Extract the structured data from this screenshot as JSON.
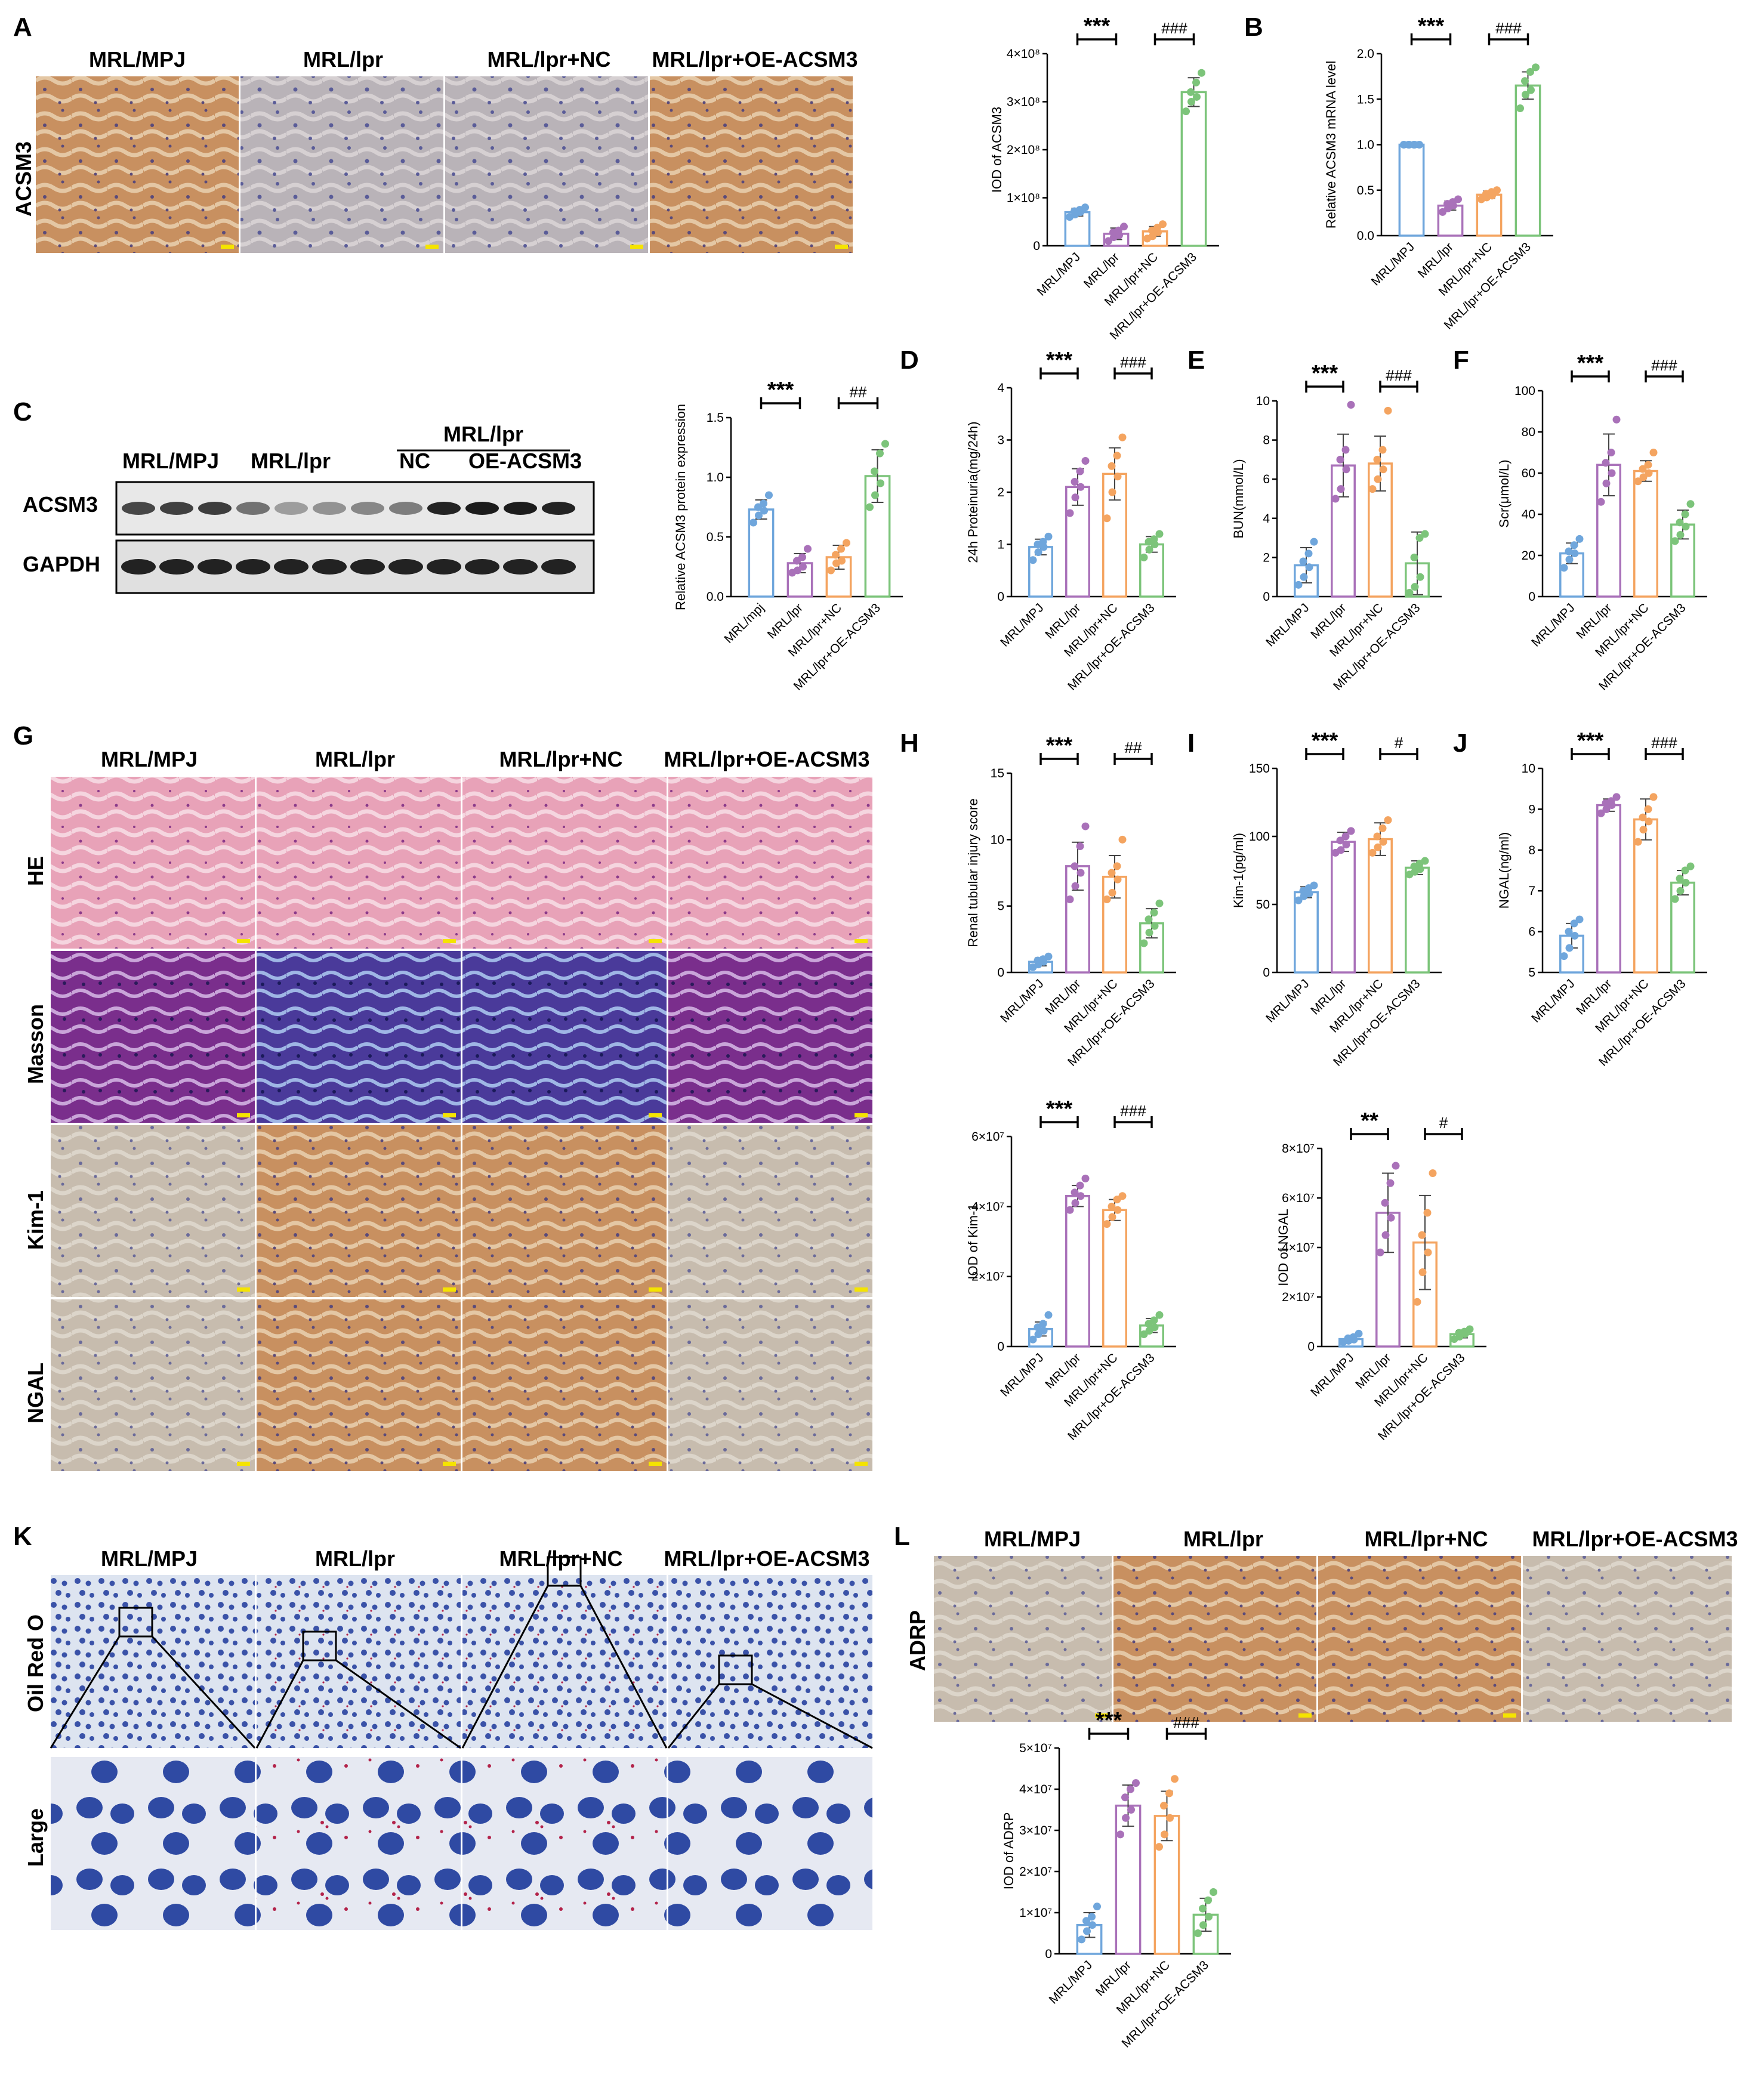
{
  "groups": [
    "MRL/MPJ",
    "MRL/lpr",
    "MRL/lpr+NC",
    "MRL/lpr+OE-ACSM3"
  ],
  "colors": [
    "#6fa6dc",
    "#a971b9",
    "#f4a460",
    "#7cc47a"
  ],
  "panel_letters": [
    "A",
    "B",
    "C",
    "D",
    "E",
    "F",
    "G",
    "H",
    "I",
    "J",
    "K",
    "L"
  ],
  "panel_a": {
    "stain_label": "ACSM3",
    "headers": [
      "MRL/MPJ",
      "MRL/lpr",
      "MRL/lpr+NC",
      "MRL/lpr+OE-ACSM3"
    ]
  },
  "panel_c": {
    "headers": [
      "MRL/MPJ",
      "MRL/lpr"
    ],
    "group_bracket_label": "MRL/lpr",
    "sub_headers": [
      "NC",
      "OE-ACSM3"
    ],
    "bands": [
      "ACSM3",
      "GAPDH"
    ]
  },
  "panel_g": {
    "headers": [
      "MRL/MPJ",
      "MRL/lpr",
      "MRL/lpr+NC",
      "MRL/lpr+OE-ACSM3"
    ],
    "rows": [
      "HE",
      "Masson",
      "Kim-1",
      "NGAL"
    ]
  },
  "panel_k": {
    "headers": [
      "MRL/MPJ",
      "MRL/lpr",
      "MRL/lpr+NC",
      "MRL/lpr+OE-ACSM3"
    ],
    "rows": [
      "Oil Red O",
      "Large"
    ]
  },
  "panel_l": {
    "stain_label": "ADRP",
    "headers": [
      "MRL/MPJ",
      "MRL/lpr",
      "MRL/lpr+NC",
      "MRL/lpr+OE-ACSM3"
    ]
  },
  "chart_data": [
    {
      "id": "A-iod",
      "type": "bar",
      "categories": [
        "MRL/MPJ",
        "MRL/lpr",
        "MRL/lpr+NC",
        "MRL/lpr+OE-ACSM3"
      ],
      "values": [
        70000000,
        25000000,
        30000000,
        320000000
      ],
      "errors": [
        8000000,
        12000000,
        10000000,
        30000000
      ],
      "points": [
        [
          60000000,
          65000000,
          70000000,
          72000000,
          75000000,
          80000000
        ],
        [
          10000000,
          18000000,
          22000000,
          28000000,
          32000000,
          40000000
        ],
        [
          15000000,
          20000000,
          28000000,
          32000000,
          38000000,
          45000000
        ],
        [
          280000000,
          300000000,
          310000000,
          320000000,
          340000000,
          360000000
        ]
      ],
      "ylabel": "IOD of ACSM3",
      "ylim": [
        0,
        400000000
      ],
      "ticks": [
        "0",
        "1×10⁸",
        "2×10⁸",
        "3×10⁸",
        "4×10⁸"
      ],
      "sig": [
        {
          "from": 0,
          "to": 1,
          "label": "***"
        },
        {
          "from": 2,
          "to": 3,
          "label": "###"
        }
      ]
    },
    {
      "id": "B",
      "type": "bar",
      "categories": [
        "MRL/MPJ",
        "MRL/lpr",
        "MRL/lpr+NC",
        "MRL/lpr+OE-ACSM3"
      ],
      "values": [
        1.0,
        0.33,
        0.45,
        1.65
      ],
      "errors": [
        0.01,
        0.05,
        0.04,
        0.15
      ],
      "points": [
        [
          1.0,
          1.0,
          1.0,
          1.0,
          1.0,
          1.0
        ],
        [
          0.26,
          0.3,
          0.33,
          0.35,
          0.37,
          0.4
        ],
        [
          0.4,
          0.42,
          0.44,
          0.46,
          0.48,
          0.5
        ],
        [
          1.4,
          1.55,
          1.6,
          1.7,
          1.8,
          1.85
        ]
      ],
      "ylabel": "Relative ACSM3 mRNA level",
      "ylim": [
        0,
        2.0
      ],
      "ticks": [
        "0.0",
        "0.5",
        "1.0",
        "1.5",
        "2.0"
      ],
      "sig": [
        {
          "from": 0,
          "to": 1,
          "label": "***"
        },
        {
          "from": 2,
          "to": 3,
          "label": "###"
        }
      ]
    },
    {
      "id": "C-wb",
      "type": "bar",
      "categories": [
        "MRL/mpj",
        "MRL/lpr",
        "MRL/lpr+NC",
        "MRL/lpr+OE-ACSM3"
      ],
      "values": [
        0.73,
        0.28,
        0.33,
        1.01
      ],
      "errors": [
        0.08,
        0.08,
        0.1,
        0.22
      ],
      "points": [
        [
          0.62,
          0.68,
          0.72,
          0.75,
          0.78,
          0.85
        ],
        [
          0.2,
          0.22,
          0.25,
          0.3,
          0.33,
          0.4
        ],
        [
          0.22,
          0.28,
          0.3,
          0.35,
          0.4,
          0.45
        ],
        [
          0.75,
          0.85,
          0.95,
          1.05,
          1.2,
          1.28
        ]
      ],
      "ylabel": "Relative ACSM3 protein expression",
      "ylim": [
        0,
        1.5
      ],
      "ticks": [
        "0.0",
        "0.5",
        "1.0",
        "1.5"
      ],
      "sig": [
        {
          "from": 0,
          "to": 1,
          "label": "***"
        },
        {
          "from": 2,
          "to": 3,
          "label": "##"
        }
      ]
    },
    {
      "id": "D",
      "type": "bar",
      "categories": [
        "MRL/MPJ",
        "MRL/lpr",
        "MRL/lpr+NC",
        "MRL/lpr+OE-ACSM3"
      ],
      "values": [
        0.95,
        2.1,
        2.35,
        1.0
      ],
      "errors": [
        0.15,
        0.35,
        0.5,
        0.15
      ],
      "points": [
        [
          0.7,
          0.85,
          0.95,
          1.0,
          1.05,
          1.15
        ],
        [
          1.6,
          1.9,
          2.1,
          2.2,
          2.4,
          2.6
        ],
        [
          1.5,
          2.0,
          2.3,
          2.5,
          2.7,
          3.05
        ],
        [
          0.75,
          0.9,
          1.0,
          1.05,
          1.1,
          1.2
        ]
      ],
      "ylabel": "24h Proteinuria(mg/24h)",
      "ylim": [
        0,
        4
      ],
      "ticks": [
        "0",
        "1",
        "2",
        "3",
        "4"
      ],
      "sig": [
        {
          "from": 0,
          "to": 1,
          "label": "***"
        },
        {
          "from": 2,
          "to": 3,
          "label": "###"
        }
      ]
    },
    {
      "id": "E",
      "type": "bar",
      "categories": [
        "MRL/MPJ",
        "MRL/lpr",
        "MRL/lpr+NC",
        "MRL/lpr+OE-ACSM3"
      ],
      "values": [
        1.6,
        6.7,
        6.8,
        1.7
      ],
      "errors": [
        0.9,
        1.6,
        1.4,
        1.6
      ],
      "points": [
        [
          0.6,
          1.0,
          1.5,
          1.8,
          2.2,
          2.8
        ],
        [
          5.0,
          5.5,
          6.5,
          7.0,
          7.5,
          9.8
        ],
        [
          5.5,
          6.0,
          6.5,
          7.0,
          7.5,
          9.5
        ],
        [
          0.2,
          0.5,
          1.0,
          2.0,
          3.0,
          3.2
        ]
      ],
      "ylabel": "BUN(mmol/L)",
      "ylim": [
        0,
        10
      ],
      "ticks": [
        "0",
        "2",
        "4",
        "6",
        "8",
        "10"
      ],
      "sig": [
        {
          "from": 0,
          "to": 1,
          "label": "***"
        },
        {
          "from": 2,
          "to": 3,
          "label": "###"
        }
      ]
    },
    {
      "id": "F",
      "type": "bar",
      "categories": [
        "MRL/MPJ",
        "MRL/lpr",
        "MRL/lpr+NC",
        "MRL/lpr+OE-ACSM3"
      ],
      "values": [
        21,
        64,
        61,
        35
      ],
      "errors": [
        5,
        15,
        5,
        7
      ],
      "points": [
        [
          14,
          18,
          21,
          22,
          25,
          28
        ],
        [
          46,
          55,
          60,
          65,
          70,
          86
        ],
        [
          56,
          58,
          60,
          62,
          64,
          70
        ],
        [
          27,
          30,
          34,
          36,
          40,
          45
        ]
      ],
      "ylabel": "Scr(μmol/L)",
      "ylim": [
        0,
        100
      ],
      "ticks": [
        "0",
        "20",
        "40",
        "60",
        "80",
        "100"
      ],
      "sig": [
        {
          "from": 0,
          "to": 1,
          "label": "***"
        },
        {
          "from": 2,
          "to": 3,
          "label": "###"
        }
      ]
    },
    {
      "id": "H",
      "type": "bar",
      "categories": [
        "MRL/MPJ",
        "MRL/lpr",
        "MRL/lpr+NC",
        "MRL/lpr+OE-ACSM3"
      ],
      "values": [
        0.8,
        8.0,
        7.2,
        3.7
      ],
      "errors": [
        0.3,
        1.8,
        1.6,
        1.1
      ],
      "points": [
        [
          0.4,
          0.6,
          0.8,
          0.9,
          1.0,
          1.2
        ],
        [
          5.5,
          6.5,
          7.5,
          8.0,
          9.5,
          11.0
        ],
        [
          5.5,
          6.0,
          7.0,
          7.5,
          8.0,
          10.0
        ],
        [
          2.2,
          3.0,
          3.5,
          4.0,
          4.5,
          5.2
        ]
      ],
      "ylabel": "Renal tubular injury score",
      "ylim": [
        0,
        15
      ],
      "ticks": [
        "0",
        "5",
        "10",
        "15"
      ],
      "sig": [
        {
          "from": 0,
          "to": 1,
          "label": "***"
        },
        {
          "from": 2,
          "to": 3,
          "label": "##"
        }
      ]
    },
    {
      "id": "I",
      "type": "bar",
      "categories": [
        "MRL/MPJ",
        "MRL/lpr",
        "MRL/lpr+NC",
        "MRL/lpr+OE-ACSM3"
      ],
      "values": [
        59,
        96,
        98,
        77
      ],
      "errors": [
        4,
        7,
        12,
        5
      ],
      "points": [
        [
          53,
          56,
          58,
          60,
          62,
          64
        ],
        [
          88,
          90,
          94,
          97,
          100,
          104
        ],
        [
          88,
          92,
          96,
          100,
          106,
          112
        ],
        [
          72,
          74,
          76,
          78,
          80,
          82
        ]
      ],
      "ylabel": "Kim-1(pg/ml)",
      "ylim": [
        0,
        150
      ],
      "ticks": [
        "0",
        "50",
        "100",
        "150"
      ],
      "sig": [
        {
          "from": 0,
          "to": 1,
          "label": "***"
        },
        {
          "from": 2,
          "to": 3,
          "label": "#"
        }
      ]
    },
    {
      "id": "J",
      "type": "bar",
      "categories": [
        "MRL/MPJ",
        "MRL/lpr",
        "MRL/lpr+NC",
        "MRL/lpr+OE-ACSM3"
      ],
      "values": [
        5.9,
        9.1,
        8.75,
        7.2
      ],
      "errors": [
        0.3,
        0.15,
        0.5,
        0.3
      ],
      "points": [
        [
          5.4,
          5.6,
          5.9,
          6.0,
          6.2,
          6.3
        ],
        [
          8.9,
          9.0,
          9.1,
          9.15,
          9.2,
          9.3
        ],
        [
          8.2,
          8.5,
          8.7,
          8.8,
          9.0,
          9.3
        ],
        [
          6.8,
          7.0,
          7.2,
          7.3,
          7.5,
          7.6
        ]
      ],
      "ylabel": "NGAL(ng/ml)",
      "ylim": [
        5,
        10
      ],
      "ticks": [
        "5",
        "6",
        "7",
        "8",
        "9",
        "10"
      ],
      "sig": [
        {
          "from": 0,
          "to": 1,
          "label": "***"
        },
        {
          "from": 2,
          "to": 3,
          "label": "###"
        }
      ]
    },
    {
      "id": "G-kim1-iod",
      "type": "bar",
      "categories": [
        "MRL/MPJ",
        "MRL/lpr",
        "MRL/lpr+NC",
        "MRL/lpr+OE-ACSM3"
      ],
      "values": [
        5000000,
        43000000,
        39000000,
        6000000
      ],
      "errors": [
        2000000,
        3000000,
        3000000,
        2000000
      ],
      "points": [
        [
          2000000,
          3500000,
          4500000,
          5500000,
          6500000,
          9000000
        ],
        [
          39000000,
          41000000,
          43000000,
          44000000,
          46000000,
          48000000
        ],
        [
          35000000,
          37000000,
          39000000,
          40000000,
          42000000,
          43000000
        ],
        [
          3500000,
          4500000,
          5500000,
          6500000,
          7500000,
          9000000
        ]
      ],
      "ylabel": "IOD of Kim-1",
      "ylim": [
        0,
        60000000
      ],
      "ticks": [
        "0",
        "2×10⁷",
        "4×10⁷",
        "6×10⁷"
      ],
      "sig": [
        {
          "from": 0,
          "to": 1,
          "label": "***"
        },
        {
          "from": 2,
          "to": 3,
          "label": "###"
        }
      ]
    },
    {
      "id": "G-ngal-iod",
      "type": "bar",
      "categories": [
        "MRL/MPJ",
        "MRL/lpr",
        "MRL/lpr+NC",
        "MRL/lpr+OE-ACSM3"
      ],
      "values": [
        3000000,
        54000000,
        42000000,
        5000000
      ],
      "errors": [
        1000000,
        16000000,
        19000000,
        1500000
      ],
      "points": [
        [
          1800000,
          2300000,
          2800000,
          3300000,
          3800000,
          5200000
        ],
        [
          38000000,
          45000000,
          52000000,
          58000000,
          66000000,
          73000000
        ],
        [
          18000000,
          30000000,
          38000000,
          45000000,
          54000000,
          70000000
        ],
        [
          3000000,
          4000000,
          5000000,
          5500000,
          6000000,
          7000000
        ]
      ],
      "ylabel": "IOD of NGAL",
      "ylim": [
        0,
        80000000
      ],
      "ticks": [
        "0",
        "2×10⁷",
        "4×10⁷",
        "6×10⁷",
        "8×10⁷"
      ],
      "sig": [
        {
          "from": 0,
          "to": 1,
          "label": "**"
        },
        {
          "from": 2,
          "to": 3,
          "label": "#"
        }
      ]
    },
    {
      "id": "L-iod",
      "type": "bar",
      "categories": [
        "MRL/MPJ",
        "MRL/lpr",
        "MRL/lpr+NC",
        "MRL/lpr+OE-ACSM3"
      ],
      "values": [
        7000000,
        36000000,
        33500000,
        9500000
      ],
      "errors": [
        3000000,
        5000000,
        6000000,
        4000000
      ],
      "points": [
        [
          3500000,
          5500000,
          7000000,
          8000000,
          9000000,
          11500000
        ],
        [
          29000000,
          33000000,
          35000000,
          38000000,
          40000000,
          41500000
        ],
        [
          26000000,
          29000000,
          33000000,
          36000000,
          39000000,
          42500000
        ],
        [
          5000000,
          7000000,
          9000000,
          11000000,
          13000000,
          15000000
        ]
      ],
      "ylabel": "IOD of ADRP",
      "ylim": [
        0,
        50000000
      ],
      "ticks": [
        "0",
        "1×10⁷",
        "2×10⁷",
        "3×10⁷",
        "4×10⁷",
        "5×10⁷"
      ],
      "sig": [
        {
          "from": 0,
          "to": 1,
          "label": "***"
        },
        {
          "from": 2,
          "to": 3,
          "label": "###"
        }
      ]
    }
  ]
}
